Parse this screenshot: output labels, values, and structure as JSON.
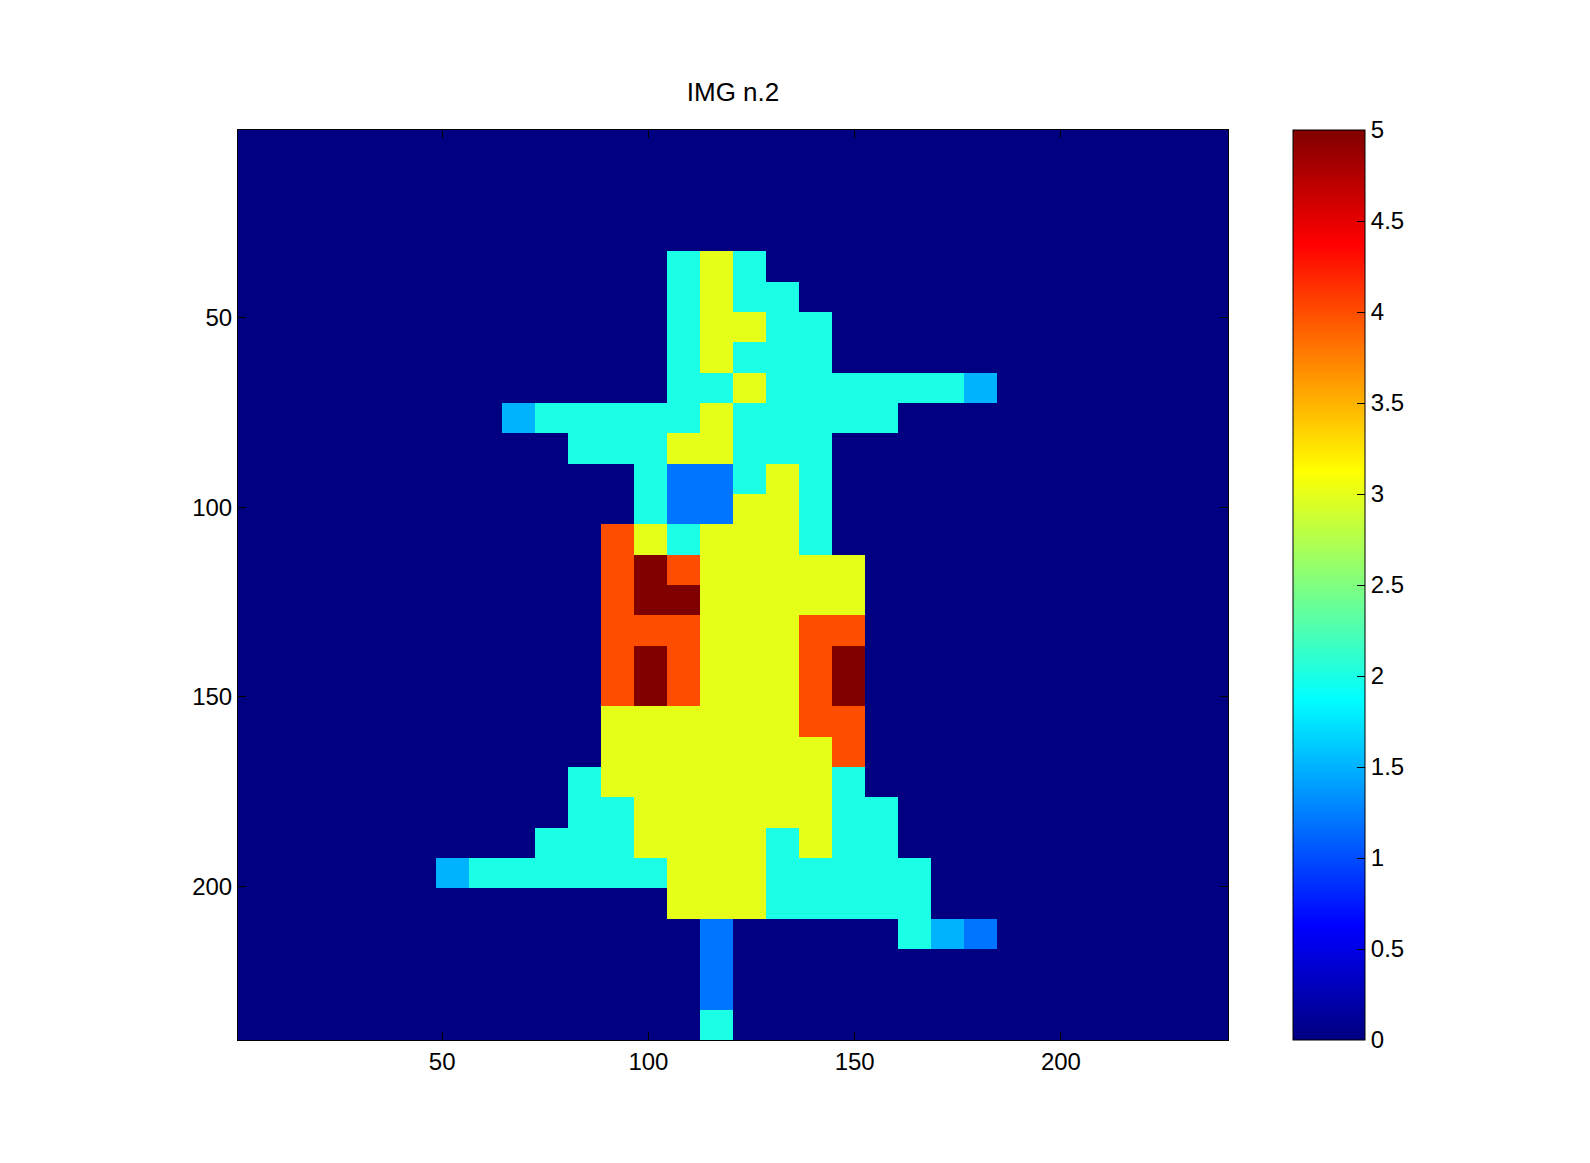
{
  "chart_data": {
    "type": "heatmap",
    "title": "IMG n.2",
    "x": [
      4.5,
      12.5,
      20.5,
      28.5,
      36.5,
      44.5,
      52.5,
      60.5,
      68.5,
      76.5,
      84.5,
      92.5,
      100.5,
      108.5,
      116.5,
      124.5,
      132.5,
      140.5,
      148.5,
      156.5,
      164.5,
      172.5,
      180.5,
      188.5,
      196.5,
      204.5,
      212.5,
      220.5,
      228.5,
      236.5
    ],
    "y": [
      4.5,
      12.5,
      20.5,
      28.5,
      36.5,
      44.5,
      52.5,
      60.5,
      68.5,
      76.5,
      84.5,
      92.5,
      100.5,
      108.5,
      116.5,
      124.5,
      132.5,
      140.5,
      148.5,
      156.5,
      164.5,
      172.5,
      180.5,
      188.5,
      196.5,
      204.5,
      212.5,
      220.5,
      228.5,
      236.5
    ],
    "z": [
      [
        0,
        0,
        0,
        0,
        0,
        0,
        0,
        0,
        0,
        0,
        0,
        0,
        0,
        0,
        0,
        0,
        0,
        0,
        0,
        0,
        0,
        0,
        0,
        0,
        0,
        0,
        0,
        0,
        0,
        0
      ],
      [
        0,
        0,
        0,
        0,
        0,
        0,
        0,
        0,
        0,
        0,
        0,
        0,
        0,
        0,
        0,
        0,
        0,
        0,
        0,
        0,
        0,
        0,
        0,
        0,
        0,
        0,
        0,
        0,
        0,
        0
      ],
      [
        0,
        0,
        0,
        0,
        0,
        0,
        0,
        0,
        0,
        0,
        0,
        0,
        0,
        0,
        0,
        0,
        0,
        0,
        0,
        0,
        0,
        0,
        0,
        0,
        0,
        0,
        0,
        0,
        0,
        0
      ],
      [
        0,
        0,
        0,
        0,
        0,
        0,
        0,
        0,
        0,
        0,
        0,
        0,
        0,
        0,
        0,
        0,
        0,
        0,
        0,
        0,
        0,
        0,
        0,
        0,
        0,
        0,
        0,
        0,
        0,
        0
      ],
      [
        0,
        0,
        0,
        0,
        0,
        0,
        0,
        0,
        0,
        0,
        0,
        0,
        0,
        2,
        3,
        2,
        0,
        0,
        0,
        0,
        0,
        0,
        0,
        0,
        0,
        0,
        0,
        0,
        0,
        0
      ],
      [
        0,
        0,
        0,
        0,
        0,
        0,
        0,
        0,
        0,
        0,
        0,
        0,
        0,
        2,
        3,
        2,
        2,
        0,
        0,
        0,
        0,
        0,
        0,
        0,
        0,
        0,
        0,
        0,
        0,
        0
      ],
      [
        0,
        0,
        0,
        0,
        0,
        0,
        0,
        0,
        0,
        0,
        0,
        0,
        0,
        2,
        3,
        3,
        2,
        2,
        0,
        0,
        0,
        0,
        0,
        0,
        0,
        0,
        0,
        0,
        0,
        0
      ],
      [
        0,
        0,
        0,
        0,
        0,
        0,
        0,
        0,
        0,
        0,
        0,
        0,
        0,
        2,
        3,
        2,
        2,
        2,
        0,
        0,
        0,
        0,
        0,
        0,
        0,
        0,
        0,
        0,
        0,
        0
      ],
      [
        0,
        0,
        0,
        0,
        0,
        0,
        0,
        0,
        0,
        0,
        0,
        0,
        0,
        2,
        2,
        3,
        2,
        2,
        2,
        2,
        2,
        2,
        1.5,
        0,
        0,
        0,
        0,
        0,
        0,
        0
      ],
      [
        0,
        0,
        0,
        0,
        0,
        0,
        0,
        0,
        1.5,
        2,
        2,
        2,
        2,
        2,
        3,
        2,
        2,
        2,
        2,
        2,
        0,
        0,
        0,
        0,
        0,
        0,
        0,
        0,
        0,
        0
      ],
      [
        0,
        0,
        0,
        0,
        0,
        0,
        0,
        0,
        0,
        0,
        2,
        2,
        2,
        3,
        3,
        2,
        2,
        2,
        0,
        0,
        0,
        0,
        0,
        0,
        0,
        0,
        0,
        0,
        0,
        0
      ],
      [
        0,
        0,
        0,
        0,
        0,
        0,
        0,
        0,
        0,
        0,
        0,
        0,
        2,
        1.2,
        1.2,
        2,
        3,
        2,
        0,
        0,
        0,
        0,
        0,
        0,
        0,
        0,
        0,
        0,
        0,
        0
      ],
      [
        0,
        0,
        0,
        0,
        0,
        0,
        0,
        0,
        0,
        0,
        0,
        0,
        2,
        1.2,
        1.2,
        3,
        3,
        2,
        0,
        0,
        0,
        0,
        0,
        0,
        0,
        0,
        0,
        0,
        0,
        0
      ],
      [
        0,
        0,
        0,
        0,
        0,
        0,
        0,
        0,
        0,
        0,
        0,
        4,
        3,
        2,
        3,
        3,
        3,
        2,
        0,
        0,
        0,
        0,
        0,
        0,
        0,
        0,
        0,
        0,
        0,
        0
      ],
      [
        0,
        0,
        0,
        0,
        0,
        0,
        0,
        0,
        0,
        0,
        0,
        4,
        5,
        4,
        3,
        3,
        3,
        3,
        3,
        0,
        0,
        0,
        0,
        0,
        0,
        0,
        0,
        0,
        0,
        0
      ],
      [
        0,
        0,
        0,
        0,
        0,
        0,
        0,
        0,
        0,
        0,
        0,
        4,
        5,
        5,
        3,
        3,
        3,
        3,
        3,
        0,
        0,
        0,
        0,
        0,
        0,
        0,
        0,
        0,
        0,
        0
      ],
      [
        0,
        0,
        0,
        0,
        0,
        0,
        0,
        0,
        0,
        0,
        0,
        4,
        4,
        4,
        3,
        3,
        3,
        4,
        4,
        0,
        0,
        0,
        0,
        0,
        0,
        0,
        0,
        0,
        0,
        0
      ],
      [
        0,
        0,
        0,
        0,
        0,
        0,
        0,
        0,
        0,
        0,
        0,
        4,
        5,
        4,
        3,
        3,
        3,
        4,
        5,
        0,
        0,
        0,
        0,
        0,
        0,
        0,
        0,
        0,
        0,
        0
      ],
      [
        0,
        0,
        0,
        0,
        0,
        0,
        0,
        0,
        0,
        0,
        0,
        4,
        5,
        4,
        3,
        3,
        3,
        4,
        5,
        0,
        0,
        0,
        0,
        0,
        0,
        0,
        0,
        0,
        0,
        0
      ],
      [
        0,
        0,
        0,
        0,
        0,
        0,
        0,
        0,
        0,
        0,
        0,
        3,
        3,
        3,
        3,
        3,
        3,
        4,
        4,
        0,
        0,
        0,
        0,
        0,
        0,
        0,
        0,
        0,
        0,
        0
      ],
      [
        0,
        0,
        0,
        0,
        0,
        0,
        0,
        0,
        0,
        0,
        0,
        3,
        3,
        3,
        3,
        3,
        3,
        3,
        4,
        0,
        0,
        0,
        0,
        0,
        0,
        0,
        0,
        0,
        0,
        0
      ],
      [
        0,
        0,
        0,
        0,
        0,
        0,
        0,
        0,
        0,
        0,
        2,
        3,
        3,
        3,
        3,
        3,
        3,
        3,
        2,
        0,
        0,
        0,
        0,
        0,
        0,
        0,
        0,
        0,
        0,
        0
      ],
      [
        0,
        0,
        0,
        0,
        0,
        0,
        0,
        0,
        0,
        0,
        2,
        2,
        3,
        3,
        3,
        3,
        3,
        3,
        2,
        2,
        0,
        0,
        0,
        0,
        0,
        0,
        0,
        0,
        0,
        0
      ],
      [
        0,
        0,
        0,
        0,
        0,
        0,
        0,
        0,
        0,
        2,
        2,
        2,
        3,
        3,
        3,
        3,
        2,
        3,
        2,
        2,
        0,
        0,
        0,
        0,
        0,
        0,
        0,
        0,
        0,
        0
      ],
      [
        0,
        0,
        0,
        0,
        0,
        0,
        1.5,
        2,
        2,
        2,
        2,
        2,
        2,
        3,
        3,
        3,
        2,
        2,
        2,
        2,
        2,
        0,
        0,
        0,
        0,
        0,
        0,
        0,
        0,
        0
      ],
      [
        0,
        0,
        0,
        0,
        0,
        0,
        0,
        0,
        0,
        0,
        0,
        0,
        0,
        3,
        3,
        3,
        2,
        2,
        2,
        2,
        2,
        0,
        0,
        0,
        0,
        0,
        0,
        0,
        0,
        0
      ],
      [
        0,
        0,
        0,
        0,
        0,
        0,
        0,
        0,
        0,
        0,
        0,
        0,
        0,
        0,
        1.2,
        0,
        0,
        0,
        0,
        0,
        2,
        1.5,
        1.2,
        0,
        0,
        0,
        0,
        0,
        0,
        0
      ],
      [
        0,
        0,
        0,
        0,
        0,
        0,
        0,
        0,
        0,
        0,
        0,
        0,
        0,
        0,
        1.2,
        0,
        0,
        0,
        0,
        0,
        0,
        0,
        0,
        0,
        0,
        0,
        0,
        0,
        0,
        0
      ],
      [
        0,
        0,
        0,
        0,
        0,
        0,
        0,
        0,
        0,
        0,
        0,
        0,
        0,
        0,
        1.2,
        0,
        0,
        0,
        0,
        0,
        0,
        0,
        0,
        0,
        0,
        0,
        0,
        0,
        0,
        0
      ],
      [
        0,
        0,
        0,
        0,
        0,
        0,
        0,
        0,
        0,
        0,
        0,
        0,
        0,
        0,
        2,
        0,
        0,
        0,
        0,
        0,
        0,
        0,
        0,
        0,
        0,
        0,
        0,
        0,
        0,
        0
      ]
    ],
    "xlim": [
      0.5,
      240.5
    ],
    "ylim": [
      240.5,
      0.5
    ],
    "xticks": [
      50,
      100,
      150,
      200
    ],
    "yticks": [
      50,
      100,
      150,
      200
    ],
    "zlim": [
      0,
      5
    ],
    "zticks": [
      0,
      0.5,
      1,
      1.5,
      2,
      2.5,
      3,
      3.5,
      4,
      4.5,
      5
    ],
    "grid": false
  }
}
